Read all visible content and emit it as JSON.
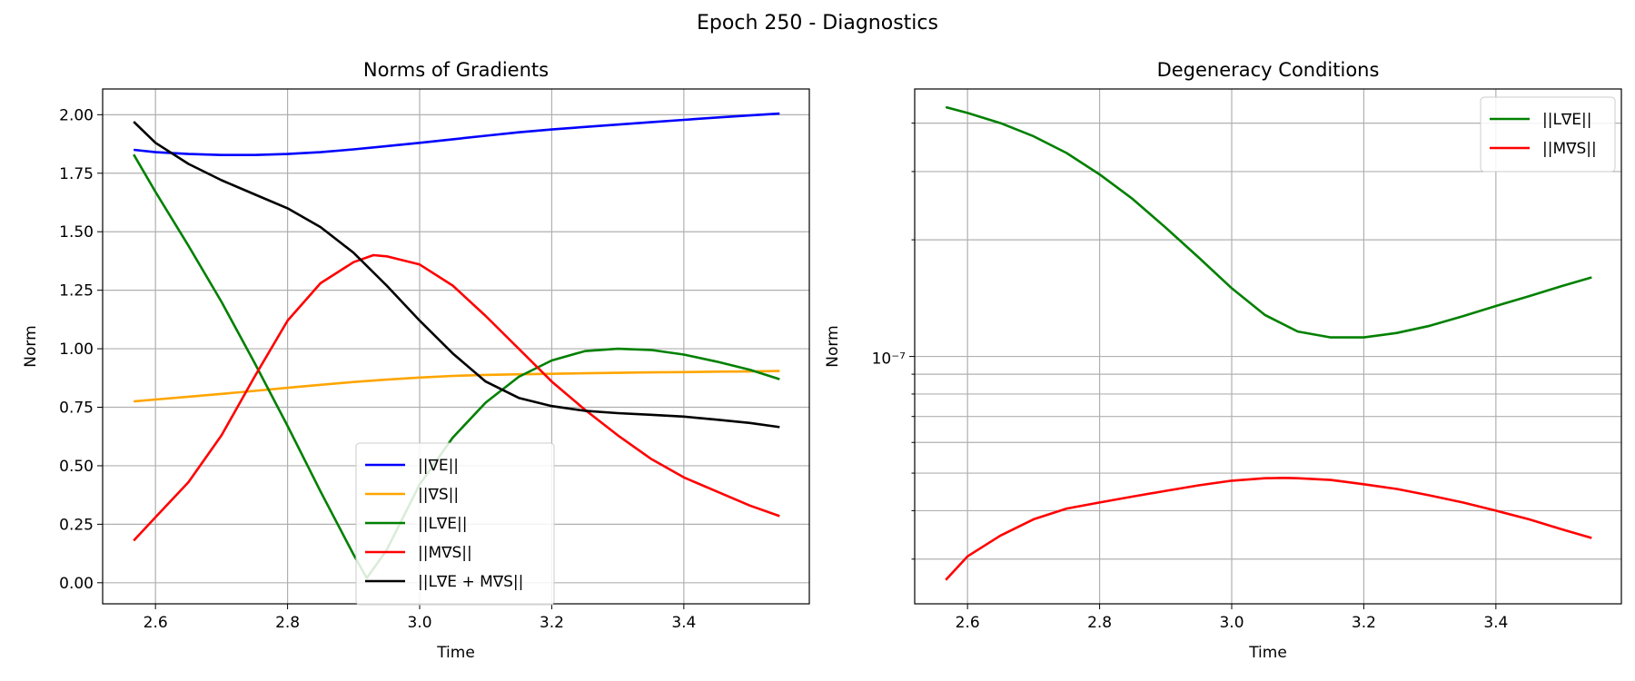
{
  "figure": {
    "title": "Epoch 250 - Diagnostics"
  },
  "chart_data": [
    {
      "type": "line",
      "title": "Norms of Gradients",
      "xlabel": "Time",
      "ylabel": "Norm",
      "xlim": [
        2.52,
        3.59
      ],
      "ylim": [
        -0.09,
        2.11
      ],
      "xticks": [
        2.6,
        2.8,
        3.0,
        3.2,
        3.4
      ],
      "xtick_labels": [
        "2.6",
        "2.8",
        "3.0",
        "3.2",
        "3.4"
      ],
      "yticks": [
        0.0,
        0.25,
        0.5,
        0.75,
        1.0,
        1.25,
        1.5,
        1.75,
        2.0
      ],
      "ytick_labels": [
        "0.00",
        "0.25",
        "0.50",
        "0.75",
        "1.00",
        "1.25",
        "1.50",
        "1.75",
        "2.00"
      ],
      "grid": true,
      "legend_position": "lower-center",
      "series": [
        {
          "name": "||∇E||",
          "color": "#0000ff",
          "x": [
            2.567,
            2.6,
            2.65,
            2.7,
            2.75,
            2.8,
            2.85,
            2.9,
            2.95,
            3.0,
            3.05,
            3.1,
            3.15,
            3.2,
            3.25,
            3.3,
            3.35,
            3.4,
            3.45,
            3.5,
            3.545
          ],
          "y": [
            1.85,
            1.84,
            1.832,
            1.828,
            1.828,
            1.832,
            1.84,
            1.852,
            1.866,
            1.88,
            1.895,
            1.91,
            1.925,
            1.937,
            1.948,
            1.958,
            1.968,
            1.978,
            1.988,
            1.997,
            2.005
          ]
        },
        {
          "name": "||∇S||",
          "color": "#ffa500",
          "x": [
            2.567,
            2.6,
            2.65,
            2.7,
            2.75,
            2.8,
            2.85,
            2.9,
            2.95,
            3.0,
            3.05,
            3.1,
            3.15,
            3.2,
            3.25,
            3.3,
            3.35,
            3.4,
            3.45,
            3.5,
            3.545
          ],
          "y": [
            0.775,
            0.783,
            0.795,
            0.807,
            0.82,
            0.833,
            0.846,
            0.858,
            0.868,
            0.877,
            0.884,
            0.888,
            0.891,
            0.893,
            0.895,
            0.897,
            0.899,
            0.9,
            0.902,
            0.903,
            0.905
          ]
        },
        {
          "name": "||L∇E||",
          "color": "#008000",
          "x": [
            2.567,
            2.6,
            2.65,
            2.7,
            2.75,
            2.8,
            2.85,
            2.9,
            2.92,
            2.95,
            3.0,
            3.05,
            3.1,
            3.15,
            3.2,
            3.25,
            3.3,
            3.35,
            3.4,
            3.45,
            3.5,
            3.545
          ],
          "y": [
            1.83,
            1.67,
            1.44,
            1.2,
            0.94,
            0.67,
            0.39,
            0.12,
            0.02,
            0.14,
            0.42,
            0.62,
            0.77,
            0.88,
            0.95,
            0.99,
            1.0,
            0.995,
            0.975,
            0.945,
            0.91,
            0.87
          ]
        },
        {
          "name": "||M∇S||",
          "color": "#ff0000",
          "x": [
            2.567,
            2.6,
            2.65,
            2.7,
            2.75,
            2.8,
            2.85,
            2.9,
            2.93,
            2.95,
            3.0,
            3.05,
            3.1,
            3.15,
            3.2,
            3.25,
            3.3,
            3.35,
            3.4,
            3.45,
            3.5,
            3.545
          ],
          "y": [
            0.18,
            0.28,
            0.43,
            0.63,
            0.88,
            1.12,
            1.28,
            1.37,
            1.4,
            1.395,
            1.36,
            1.27,
            1.14,
            1.0,
            0.86,
            0.74,
            0.63,
            0.53,
            0.45,
            0.39,
            0.33,
            0.285
          ]
        },
        {
          "name": "||L∇E + M∇S||",
          "color": "#000000",
          "x": [
            2.567,
            2.6,
            2.65,
            2.7,
            2.75,
            2.8,
            2.85,
            2.9,
            2.95,
            3.0,
            3.05,
            3.1,
            3.15,
            3.2,
            3.25,
            3.3,
            3.35,
            3.4,
            3.45,
            3.5,
            3.545
          ],
          "y": [
            1.97,
            1.88,
            1.79,
            1.72,
            1.66,
            1.6,
            1.52,
            1.41,
            1.27,
            1.12,
            0.98,
            0.86,
            0.79,
            0.755,
            0.735,
            0.725,
            0.718,
            0.71,
            0.697,
            0.683,
            0.665
          ]
        }
      ]
    },
    {
      "type": "line",
      "title": "Degeneracy Conditions",
      "xlabel": "Time",
      "ylabel": "Norm",
      "yscale": "log",
      "xlim": [
        2.52,
        3.59
      ],
      "ylim": [
        2.3e-08,
        4.9e-07
      ],
      "xticks": [
        2.6,
        2.8,
        3.0,
        3.2,
        3.4
      ],
      "xtick_labels": [
        "2.6",
        "2.8",
        "3.0",
        "3.2",
        "3.4"
      ],
      "yticks": [
        1e-07
      ],
      "ytick_labels": [
        "10⁻⁷"
      ],
      "grid": true,
      "legend_position": "upper-right",
      "series": [
        {
          "name": "||L∇E||",
          "color": "#008000",
          "x": [
            2.567,
            2.6,
            2.65,
            2.7,
            2.75,
            2.8,
            2.85,
            2.9,
            2.95,
            3.0,
            3.05,
            3.1,
            3.15,
            3.2,
            3.25,
            3.3,
            3.35,
            3.4,
            3.45,
            3.5,
            3.545
          ],
          "y": [
            4.4e-07,
            4.25e-07,
            4e-07,
            3.7e-07,
            3.35e-07,
            2.95e-07,
            2.55e-07,
            2.15e-07,
            1.8e-07,
            1.5e-07,
            1.28e-07,
            1.16e-07,
            1.12e-07,
            1.12e-07,
            1.15e-07,
            1.2e-07,
            1.27e-07,
            1.35e-07,
            1.43e-07,
            1.52e-07,
            1.6e-07
          ]
        },
        {
          "name": "||M∇S||",
          "color": "#ff0000",
          "x": [
            2.567,
            2.6,
            2.65,
            2.7,
            2.75,
            2.8,
            2.85,
            2.9,
            2.95,
            3.0,
            3.05,
            3.08,
            3.1,
            3.15,
            3.2,
            3.25,
            3.3,
            3.35,
            3.4,
            3.45,
            3.5,
            3.545
          ],
          "y": [
            2.65e-08,
            3.05e-08,
            3.45e-08,
            3.8e-08,
            4.05e-08,
            4.2e-08,
            4.35e-08,
            4.5e-08,
            4.65e-08,
            4.78e-08,
            4.85e-08,
            4.86e-08,
            4.85e-08,
            4.8e-08,
            4.68e-08,
            4.55e-08,
            4.38e-08,
            4.2e-08,
            4e-08,
            3.8e-08,
            3.58e-08,
            3.4e-08
          ]
        }
      ]
    }
  ]
}
